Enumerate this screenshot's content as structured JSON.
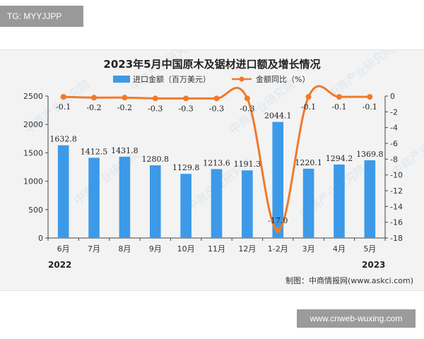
{
  "tag_text": "TG: MYYJJPP",
  "footer_site": "www.cnweb-wuxing.com",
  "credit": "制图：中商情报网(www.askci.com)",
  "watermark_text": "中商产业研究院",
  "colors": {
    "bar": "#3d9ae8",
    "line": "#f07a2a",
    "panel": "#f3f3f3"
  },
  "chart_data": {
    "type": "bar",
    "title": "2023年5月中国原木及锯材进口额及增长情况",
    "categories": [
      "6月",
      "7月",
      "8月",
      "9月",
      "10月",
      "11月",
      "12月",
      "1-2月",
      "3月",
      "4月",
      "5月"
    ],
    "series": [
      {
        "name": "进口金额（百万美元）",
        "type": "bar",
        "axis": "left",
        "values": [
          1632.8,
          1412.5,
          1431.8,
          1280.8,
          1129.8,
          1213.6,
          1191.3,
          2044.1,
          1220.1,
          1294.2,
          1369.8
        ]
      },
      {
        "name": "金额同比（%）",
        "type": "line",
        "axis": "right",
        "values": [
          -0.1,
          -0.2,
          -0.2,
          -0.3,
          -0.3,
          -0.3,
          -0.3,
          -17.0,
          -0.1,
          -0.1,
          -0.1
        ]
      }
    ],
    "bar_labels": [
      "1632.8",
      "1412.5",
      "1431.8",
      "1280.8",
      "1129.8",
      "1213.6",
      "1191.3",
      "2044.1",
      "1220.1",
      "1294.2",
      "1369.8"
    ],
    "line_labels": [
      "-0.1",
      "-0.2",
      "-0.2",
      "-0.3",
      "-0.3",
      "-0.3",
      "-0.3",
      "-17.0",
      "-0.1",
      "-0.1",
      "-0.1"
    ],
    "ylim_left": [
      0,
      2500
    ],
    "yticks_left": [
      "0",
      "500",
      "1000",
      "1500",
      "2000",
      "2500"
    ],
    "ylim_right": [
      -18,
      0
    ],
    "yticks_right": [
      "0",
      "-2",
      "-4",
      "-6",
      "-8",
      "-10",
      "-12",
      "-14",
      "-16",
      "-18"
    ],
    "year_labels": [
      "2022",
      "2023"
    ],
    "legend_position": "top"
  }
}
